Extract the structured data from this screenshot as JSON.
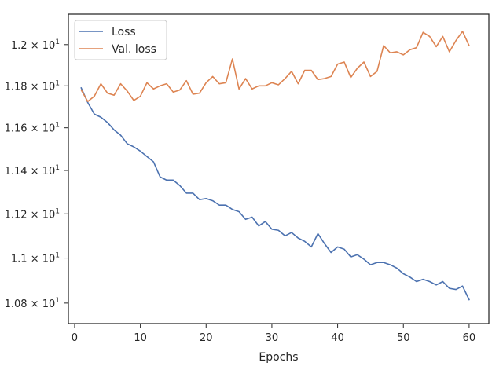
{
  "chart_data": {
    "type": "line",
    "title": "",
    "xlabel": "Epochs",
    "ylabel": "",
    "xlim": [
      -0.95,
      63
    ],
    "ylim": [
      10.71,
      12.15
    ],
    "yscale": "log",
    "grid": false,
    "legend_position": "top-left",
    "x_ticks": [
      0,
      10,
      20,
      30,
      40,
      50,
      60
    ],
    "x_tick_labels": [
      "0",
      "10",
      "20",
      "30",
      "40",
      "50",
      "60"
    ],
    "y_ticks": [
      10.8,
      11.0,
      11.2,
      11.4,
      11.6,
      11.8,
      12.0
    ],
    "y_tick_labels": [
      {
        "mantissa": "1.08",
        "exponent": "1"
      },
      {
        "mantissa": "1.1",
        "exponent": "1"
      },
      {
        "mantissa": "1.12",
        "exponent": "1"
      },
      {
        "mantissa": "1.14",
        "exponent": "1"
      },
      {
        "mantissa": "1.16",
        "exponent": "1"
      },
      {
        "mantissa": "1.18",
        "exponent": "1"
      },
      {
        "mantissa": "1.2",
        "exponent": "1"
      }
    ],
    "x": [
      1,
      2,
      3,
      4,
      5,
      6,
      7,
      8,
      9,
      10,
      11,
      12,
      13,
      14,
      15,
      16,
      17,
      18,
      19,
      20,
      21,
      22,
      23,
      24,
      25,
      26,
      27,
      28,
      29,
      30,
      31,
      32,
      33,
      34,
      35,
      36,
      37,
      38,
      39,
      40,
      41,
      42,
      43,
      44,
      45,
      46,
      47,
      48,
      49,
      50,
      51,
      52,
      53,
      54,
      55,
      56,
      57,
      58,
      59,
      60
    ],
    "series": [
      {
        "name": "Loss",
        "color": "#4c72b0",
        "values": [
          11.79,
          11.72,
          11.665,
          11.65,
          11.625,
          11.59,
          11.565,
          11.525,
          11.51,
          11.49,
          11.465,
          11.44,
          11.37,
          11.355,
          11.355,
          11.33,
          11.295,
          11.295,
          11.265,
          11.27,
          11.26,
          11.24,
          11.24,
          11.22,
          11.21,
          11.175,
          11.185,
          11.145,
          11.165,
          11.13,
          11.125,
          11.1,
          11.115,
          11.09,
          11.075,
          11.05,
          11.11,
          11.065,
          11.025,
          11.05,
          11.04,
          11.005,
          11.015,
          10.995,
          10.97,
          10.98,
          10.98,
          10.97,
          10.955,
          10.93,
          10.915,
          10.895,
          10.905,
          10.895,
          10.88,
          10.895,
          10.865,
          10.86,
          10.875,
          10.815
        ]
      },
      {
        "name": "Val. loss",
        "color": "#dd8452",
        "values": [
          11.78,
          11.725,
          11.75,
          11.81,
          11.765,
          11.755,
          11.81,
          11.775,
          11.73,
          11.75,
          11.815,
          11.785,
          11.8,
          11.81,
          11.77,
          11.78,
          11.825,
          11.76,
          11.765,
          11.815,
          11.845,
          11.81,
          11.815,
          11.93,
          11.785,
          11.835,
          11.785,
          11.8,
          11.8,
          11.815,
          11.805,
          11.835,
          11.87,
          11.81,
          11.875,
          11.875,
          11.83,
          11.835,
          11.845,
          11.905,
          11.915,
          11.84,
          11.885,
          11.915,
          11.845,
          11.87,
          11.995,
          11.96,
          11.965,
          11.95,
          11.975,
          11.985,
          12.06,
          12.04,
          11.99,
          12.04,
          11.965,
          12.02,
          12.065,
          11.995
        ]
      }
    ]
  }
}
